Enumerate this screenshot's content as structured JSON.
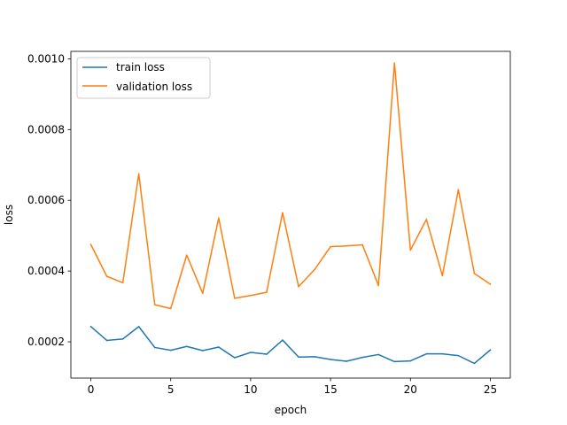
{
  "chart_data": {
    "type": "line",
    "title": "",
    "xlabel": "epoch",
    "ylabel": "loss",
    "xlim": [
      -1.25,
      26.25
    ],
    "ylim": [
      9.75e-05,
      0.001021
    ],
    "xticks": [
      0,
      5,
      10,
      15,
      20,
      25
    ],
    "xtick_labels": [
      "0",
      "5",
      "10",
      "15",
      "20",
      "25"
    ],
    "yticks": [
      0.0002,
      0.0004,
      0.0006,
      0.0008,
      0.001
    ],
    "ytick_labels": [
      "0.0002",
      "0.0004",
      "0.0006",
      "0.0008",
      "0.0010"
    ],
    "grid": false,
    "legend_position": "top-left",
    "x": [
      0,
      1,
      2,
      3,
      4,
      5,
      6,
      7,
      8,
      9,
      10,
      11,
      12,
      13,
      14,
      15,
      16,
      17,
      18,
      19,
      20,
      21,
      22,
      23,
      24,
      25
    ],
    "series": [
      {
        "name": "train loss",
        "color": "#1f77b4",
        "values": [
          0.000243,
          0.000204,
          0.000208,
          0.000243,
          0.000184,
          0.000176,
          0.000187,
          0.000175,
          0.000185,
          0.000155,
          0.00017,
          0.000165,
          0.000205,
          0.000157,
          0.000158,
          0.00015,
          0.000145,
          0.000156,
          0.000164,
          0.000144,
          0.000146,
          0.000166,
          0.000166,
          0.000161,
          0.000139,
          0.000177
        ]
      },
      {
        "name": "validation loss",
        "color": "#ff7f0e",
        "values": [
          0.000475,
          0.000385,
          0.000367,
          0.000675,
          0.000305,
          0.000294,
          0.000445,
          0.000337,
          0.00055,
          0.000323,
          0.000331,
          0.00034,
          0.000565,
          0.000356,
          0.000404,
          0.000469,
          0.000471,
          0.000474,
          0.000359,
          0.000988,
          0.000459,
          0.000546,
          0.000387,
          0.00063,
          0.000393,
          0.000363
        ]
      }
    ]
  }
}
